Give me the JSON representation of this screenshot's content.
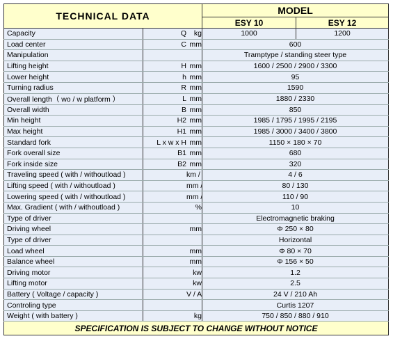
{
  "header": {
    "title": "TECHNICAL DATA",
    "model_label": "MODEL",
    "models": [
      "ESY 10",
      "ESY 12"
    ]
  },
  "rows": [
    {
      "label": "Capacity",
      "symbol": "Q",
      "unit": "kg",
      "values": [
        "1000",
        "1200"
      ]
    },
    {
      "label": "Load center",
      "symbol": "C",
      "unit": "mm",
      "values": [
        "600"
      ]
    },
    {
      "label": "Manipulation",
      "values": [
        "Tramptype / standing steer type"
      ]
    },
    {
      "label": "Lifting height",
      "symbol": "H",
      "unit": "mm",
      "values": [
        "1600 / 2500 / 2900 / 3300"
      ]
    },
    {
      "label": "Lower height",
      "symbol": "h",
      "unit": "mm",
      "values": [
        "95"
      ]
    },
    {
      "label": "Turning radius",
      "symbol": "R",
      "unit": "mm",
      "values": [
        "1590"
      ]
    },
    {
      "label": "Overall length（ wo / w platform ）",
      "symbol": "L",
      "unit": "mm",
      "values": [
        "1880 / 2330"
      ]
    },
    {
      "label": "Overall width",
      "symbol": "B",
      "unit": "mm",
      "values": [
        "850"
      ]
    },
    {
      "label": "Min height",
      "symbol": "H2",
      "unit": "mm",
      "values": [
        "1985 / 1795 / 1995 / 2195"
      ]
    },
    {
      "label": "Max height",
      "symbol": "H1",
      "unit": "mm",
      "values": [
        "1985 / 3000 / 3400 / 3800"
      ]
    },
    {
      "label": "Standard fork",
      "symbol": "L x w x H",
      "unit": "mm",
      "values": [
        "1150 × 180 × 70"
      ]
    },
    {
      "label": "Fork overall size",
      "symbol": "B1",
      "unit": "mm",
      "values": [
        "680"
      ]
    },
    {
      "label": "Fork inside size",
      "symbol": "B2",
      "unit": "mm",
      "values": [
        "320"
      ]
    },
    {
      "label": "Traveling speed ( with / withoutload )",
      "unit": "km / h",
      "values": [
        "4 / 6"
      ]
    },
    {
      "label": "Lifting speed ( with / withoutload )",
      "unit": "mm / s",
      "values": [
        "80 / 130"
      ]
    },
    {
      "label": "Lowering speed ( with / withoutload )",
      "unit": "mm / s",
      "values": [
        "110 / 90"
      ]
    },
    {
      "label": "Max. Gradient ( with / withoutload )",
      "unit": "%",
      "values": [
        "10"
      ]
    },
    {
      "label": "Type of driver",
      "values": [
        "Electromagnetic braking"
      ]
    },
    {
      "label": "Driving wheel",
      "unit": "mm",
      "values": [
        "Φ 250 × 80"
      ]
    },
    {
      "label": "Type of driver",
      "values": [
        "Horizontal"
      ]
    },
    {
      "label": "Load wheel",
      "unit": "mm",
      "values": [
        "Φ 80 × 70"
      ]
    },
    {
      "label": "Balance wheel",
      "unit": "mm",
      "values": [
        "Φ 156 × 50"
      ]
    },
    {
      "label": "Driving motor",
      "unit": "kw",
      "values": [
        "1.2"
      ]
    },
    {
      "label": "Lifting motor",
      "unit": "kw",
      "values": [
        "2.5"
      ]
    },
    {
      "label": "Battery ( Voltage / capacity )",
      "unit": "V / Ah",
      "values": [
        "24 V / 210 Ah"
      ]
    },
    {
      "label": "Controling type",
      "values": [
        "Curtis 1207"
      ]
    },
    {
      "label": "Weight ( with battery )",
      "unit": "kg",
      "values": [
        "750 / 850 / 880 / 910"
      ]
    }
  ],
  "footer": "SPECIFICATION IS SUBJECT TO CHANGE WITHOUT NOTICE"
}
